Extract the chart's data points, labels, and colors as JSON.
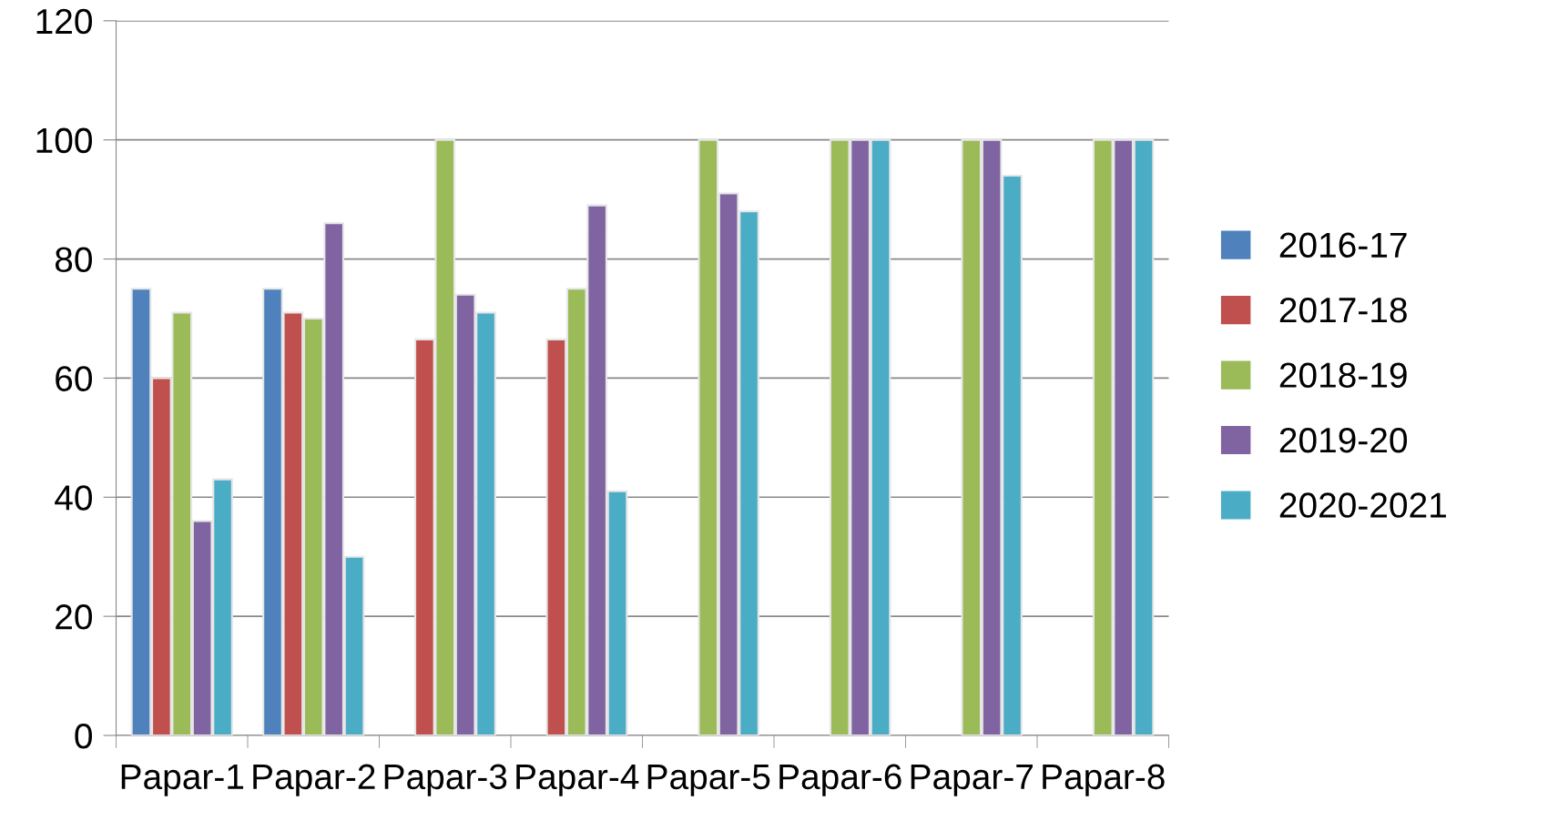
{
  "chart_data": {
    "type": "bar",
    "categories": [
      "Papar-1",
      "Papar-2",
      "Papar-3",
      "Papar-4",
      "Papar-5",
      "Papar-6",
      "Papar-7",
      "Papar-8"
    ],
    "series": [
      {
        "name": "2016-17",
        "color": "#4f81bd",
        "values": [
          75,
          75,
          null,
          null,
          null,
          null,
          null,
          null
        ]
      },
      {
        "name": "2017-18",
        "color": "#c0504d",
        "values": [
          60,
          71,
          66.5,
          66.5,
          null,
          null,
          null,
          null
        ]
      },
      {
        "name": "2018-19",
        "color": "#9bbb59",
        "values": [
          71,
          70,
          100,
          75,
          100,
          100,
          100,
          100
        ]
      },
      {
        "name": "2019-20",
        "color": "#8064a2",
        "values": [
          36,
          86,
          74,
          89,
          91,
          100,
          100,
          100
        ]
      },
      {
        "name": "2020-2021",
        "color": "#4bacc6",
        "values": [
          43,
          30,
          71,
          41,
          88,
          100,
          94,
          100
        ]
      }
    ],
    "ylim": [
      0,
      120
    ],
    "yticks": [
      0,
      20,
      40,
      60,
      80,
      100,
      120
    ],
    "grid": "y",
    "legend": "right"
  }
}
